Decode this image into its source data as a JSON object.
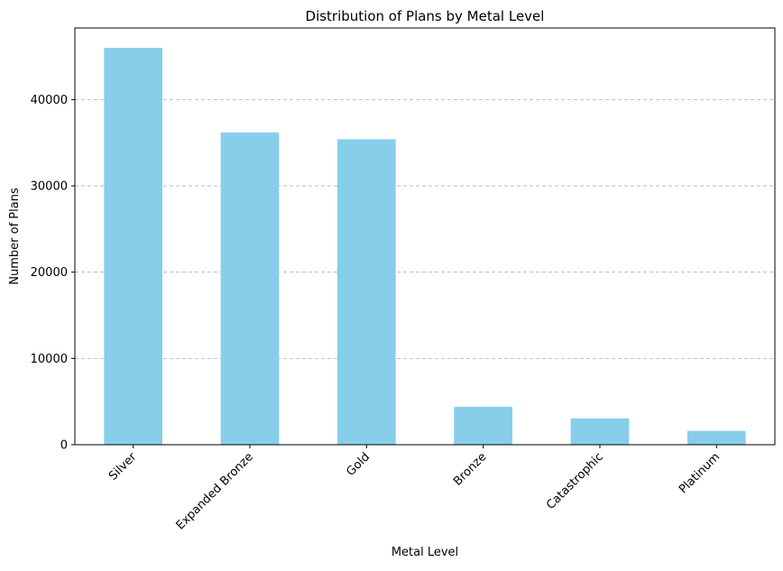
{
  "chart_data": {
    "type": "bar",
    "title": "Distribution of Plans by Metal Level",
    "xlabel": "Metal Level",
    "ylabel": "Number of Plans",
    "categories": [
      "Silver",
      "Expanded Bronze",
      "Gold",
      "Bronze",
      "Catastrophic",
      "Platinum"
    ],
    "values": [
      46000,
      36200,
      35400,
      4400,
      3050,
      1600
    ],
    "ylim": [
      0,
      48300
    ],
    "yticks": [
      0,
      10000,
      20000,
      30000,
      40000
    ],
    "ytick_labels": [
      "0",
      "10000",
      "20000",
      "30000",
      "40000"
    ],
    "grid": "y-axis dashed",
    "legend": "none",
    "bar_color": "#87ceeb",
    "x_tick_rotation_deg": 45
  }
}
